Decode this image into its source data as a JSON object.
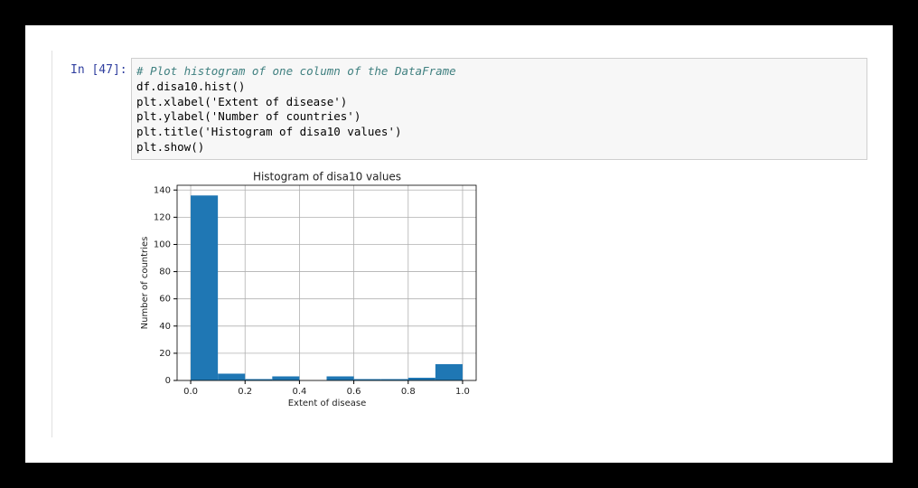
{
  "cell": {
    "prompt": "In [47]:",
    "code": [
      "# Plot histogram of one column of the DataFrame",
      "df.disa10.hist()",
      "plt.xlabel('Extent of disease')",
      "plt.ylabel('Number of countries')",
      "plt.title('Histogram of disa10 values')",
      "plt.show()"
    ]
  },
  "chart_data": {
    "type": "histogram",
    "title": "Histogram of disa10 values",
    "xlabel": "Extent of disease",
    "ylabel": "Number of countries",
    "bins": [
      0,
      0.1,
      0.2,
      0.3,
      0.4,
      0.5,
      0.6,
      0.7,
      0.8,
      0.9,
      1
    ],
    "values": [
      136,
      5,
      1,
      3,
      0,
      3,
      1,
      1,
      2,
      12
    ],
    "color": "#1f77b4",
    "xlim": [
      -0.05,
      1.05
    ],
    "ylim": [
      0,
      143.5
    ],
    "xticks": [
      {
        "value": 0,
        "label": "0.0"
      },
      0.2,
      0.4,
      0.6,
      0.8,
      {
        "value": 1,
        "label": "1.0"
      }
    ],
    "yticks": [
      0,
      20,
      40,
      60,
      80,
      100,
      120,
      140
    ],
    "grid": true
  }
}
